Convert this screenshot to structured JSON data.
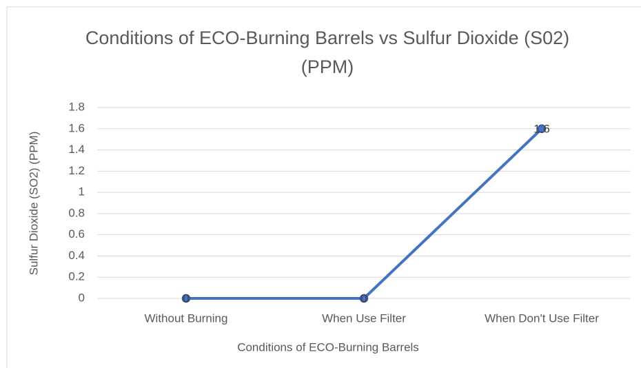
{
  "chart_data": {
    "type": "line",
    "title": "Conditions of ECO-Burning Barrels vs Sulfur Dioxide (S02) (PPM)",
    "x_label": "Conditions of ECO-Burning Barrels",
    "y_label": "Sulfur Dioxide (SO2) (PPM)",
    "categories": [
      "Without Burning",
      "When Use Filter",
      "When Don't Use Filter"
    ],
    "series": [
      {
        "name": "Sulfur Dioxide (SO2) (PPM)",
        "color": "#4472c4",
        "values": [
          0,
          0,
          1.6
        ],
        "value_labels": [
          "0",
          "0",
          "1.6"
        ]
      }
    ],
    "ylim": [
      0,
      1.8
    ],
    "yticks": [
      0,
      0.2,
      0.4,
      0.6,
      0.8,
      1,
      1.2,
      1.4,
      1.6,
      1.8
    ],
    "grid": true
  }
}
